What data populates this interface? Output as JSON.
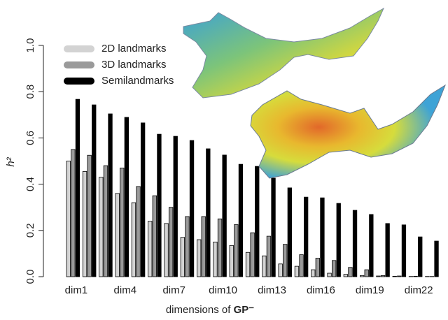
{
  "chart_data": {
    "type": "bar",
    "ylabel": "h²",
    "xlabel": [
      "dimensions of ",
      "GP⁻"
    ],
    "categories": [
      "dim1",
      null,
      null,
      "dim4",
      null,
      null,
      "dim7",
      null,
      null,
      "dim10",
      null,
      null,
      "dim13",
      null,
      null,
      "dim16",
      null,
      null,
      "dim19",
      null,
      null,
      "dim22",
      null
    ],
    "series": [
      {
        "name": "2D landmarks",
        "color": "#d3d3d3",
        "values": [
          0.5,
          0.455,
          0.43,
          0.36,
          0.32,
          0.24,
          0.23,
          0.17,
          0.16,
          0.15,
          0.135,
          0.105,
          0.09,
          0.055,
          0.045,
          0.03,
          0.015,
          0.01,
          0.005,
          0.003,
          0.002,
          0.001,
          0.001
        ]
      },
      {
        "name": "3D landmarks",
        "color": "#9a9a9a",
        "values": [
          0.55,
          0.525,
          0.48,
          0.47,
          0.39,
          0.35,
          0.3,
          0.26,
          0.26,
          0.25,
          0.225,
          0.19,
          0.175,
          0.14,
          0.095,
          0.08,
          0.07,
          0.04,
          0.03,
          0.005,
          0.003,
          0.002,
          0.001
        ]
      },
      {
        "name": "Semilandmarks",
        "color": "#000000",
        "values": [
          0.767,
          0.743,
          0.704,
          0.689,
          0.665,
          0.616,
          0.607,
          0.589,
          0.553,
          0.526,
          0.486,
          0.477,
          0.426,
          0.384,
          0.344,
          0.341,
          0.317,
          0.287,
          0.269,
          0.23,
          0.224,
          0.172,
          0.154
        ]
      }
    ],
    "ylim": [
      0,
      1
    ],
    "yticks": [
      {
        "value": 0,
        "label": "0.0"
      },
      0.2,
      0.4,
      0.6,
      0.8,
      {
        "value": 1,
        "label": "1.0"
      }
    ]
  }
}
